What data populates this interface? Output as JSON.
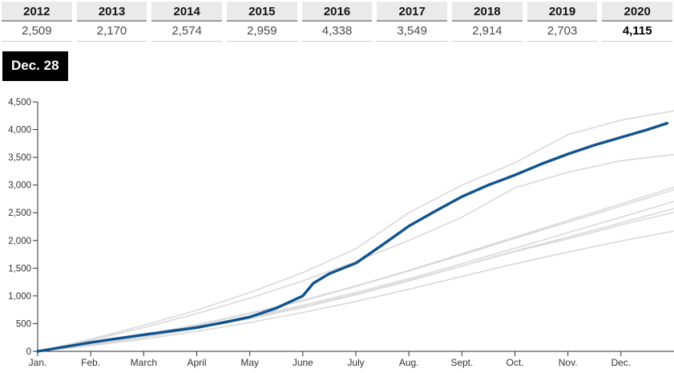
{
  "chart": {
    "date_label": "Dec. 28"
  },
  "year_selector": {
    "years": [
      {
        "label": "2012",
        "value": "2,509",
        "selected": false
      },
      {
        "label": "2013",
        "value": "2,170",
        "selected": false
      },
      {
        "label": "2014",
        "value": "2,574",
        "selected": false
      },
      {
        "label": "2015",
        "value": "2,959",
        "selected": false
      },
      {
        "label": "2016",
        "value": "4,338",
        "selected": false
      },
      {
        "label": "2017",
        "value": "3,549",
        "selected": false
      },
      {
        "label": "2018",
        "value": "2,914",
        "selected": false
      },
      {
        "label": "2019",
        "value": "2,703",
        "selected": false
      },
      {
        "label": "2020",
        "value": "4,115",
        "selected": true
      }
    ]
  },
  "chart_data": {
    "type": "line",
    "title": "",
    "subtitle_badge": "Dec. 28",
    "legend": "none",
    "grid": false,
    "x_axis": {
      "months": [
        "Jan.",
        "Feb.",
        "March",
        "April",
        "May",
        "June",
        "July",
        "Aug.",
        "Sept.",
        "Oct.",
        "Nov.",
        "Dec."
      ],
      "range_month_index": [
        0,
        12
      ]
    },
    "y_axis": {
      "min": 0,
      "max": 4500,
      "tick_step": 500,
      "ticks": [
        "0",
        "500",
        "1,000",
        "1,500",
        "2,000",
        "2,500",
        "3,000",
        "3,500",
        "4,000",
        "4,500"
      ]
    },
    "highlight_color": "#11538e",
    "context_color": "#d9d9d9",
    "series": [
      {
        "name": "2012",
        "total": 2509,
        "highlight": false,
        "x": [
          0,
          1,
          2,
          3,
          4,
          5,
          6,
          7,
          8,
          9,
          10,
          11,
          12
        ],
        "values": [
          0,
          120,
          260,
          420,
          600,
          800,
          1030,
          1280,
          1540,
          1800,
          2030,
          2280,
          2509
        ]
      },
      {
        "name": "2013",
        "total": 2170,
        "highlight": false,
        "x": [
          0,
          1,
          2,
          3,
          4,
          5,
          6,
          7,
          8,
          9,
          10,
          11,
          12
        ],
        "values": [
          0,
          100,
          220,
          360,
          520,
          700,
          900,
          1120,
          1350,
          1580,
          1790,
          1990,
          2170
        ]
      },
      {
        "name": "2014",
        "total": 2574,
        "highlight": false,
        "x": [
          0,
          1,
          2,
          3,
          4,
          5,
          6,
          7,
          8,
          9,
          10,
          11,
          12
        ],
        "values": [
          0,
          110,
          250,
          410,
          590,
          790,
          1020,
          1270,
          1540,
          1810,
          2060,
          2320,
          2574
        ]
      },
      {
        "name": "2015",
        "total": 2959,
        "highlight": false,
        "x": [
          0,
          1,
          2,
          3,
          4,
          5,
          6,
          7,
          8,
          9,
          10,
          11,
          12
        ],
        "values": [
          0,
          140,
          300,
          480,
          690,
          920,
          1180,
          1460,
          1760,
          2060,
          2360,
          2660,
          2959
        ]
      },
      {
        "name": "2016",
        "total": 4338,
        "highlight": false,
        "x": [
          0,
          1,
          2,
          3,
          4,
          5,
          6,
          7,
          8,
          9,
          10,
          11,
          12
        ],
        "values": [
          0,
          220,
          470,
          740,
          1060,
          1420,
          1850,
          2500,
          3000,
          3400,
          3910,
          4170,
          4338
        ]
      },
      {
        "name": "2017",
        "total": 3549,
        "highlight": false,
        "x": [
          0,
          1,
          2,
          3,
          4,
          5,
          6,
          7,
          8,
          9,
          10,
          11,
          12
        ],
        "values": [
          0,
          200,
          430,
          680,
          960,
          1270,
          1620,
          2000,
          2420,
          2950,
          3230,
          3440,
          3549
        ]
      },
      {
        "name": "2018",
        "total": 2914,
        "highlight": false,
        "x": [
          0,
          1,
          2,
          3,
          4,
          5,
          6,
          7,
          8,
          9,
          10,
          11,
          12
        ],
        "values": [
          0,
          130,
          290,
          470,
          680,
          910,
          1170,
          1450,
          1740,
          2040,
          2330,
          2620,
          2914
        ]
      },
      {
        "name": "2019",
        "total": 2703,
        "highlight": false,
        "x": [
          0,
          1,
          2,
          3,
          4,
          5,
          6,
          7,
          8,
          9,
          10,
          11,
          12
        ],
        "values": [
          0,
          120,
          260,
          430,
          620,
          830,
          1060,
          1310,
          1580,
          1860,
          2140,
          2420,
          2703
        ]
      },
      {
        "name": "2020",
        "total": 4115,
        "highlight": true,
        "end_label": "Dec. 28",
        "x": [
          0,
          0.5,
          1,
          1.5,
          2,
          2.5,
          3,
          3.5,
          4,
          4.5,
          5,
          5.2,
          5.5,
          6,
          6.5,
          7,
          7.5,
          8,
          8.5,
          9,
          9.5,
          10,
          10.5,
          11,
          11.5,
          11.87
        ],
        "values": [
          0,
          80,
          160,
          230,
          300,
          365,
          430,
          520,
          620,
          780,
          1000,
          1230,
          1400,
          1590,
          1920,
          2260,
          2530,
          2790,
          3000,
          3180,
          3380,
          3560,
          3720,
          3860,
          4000,
          4115
        ]
      }
    ]
  }
}
